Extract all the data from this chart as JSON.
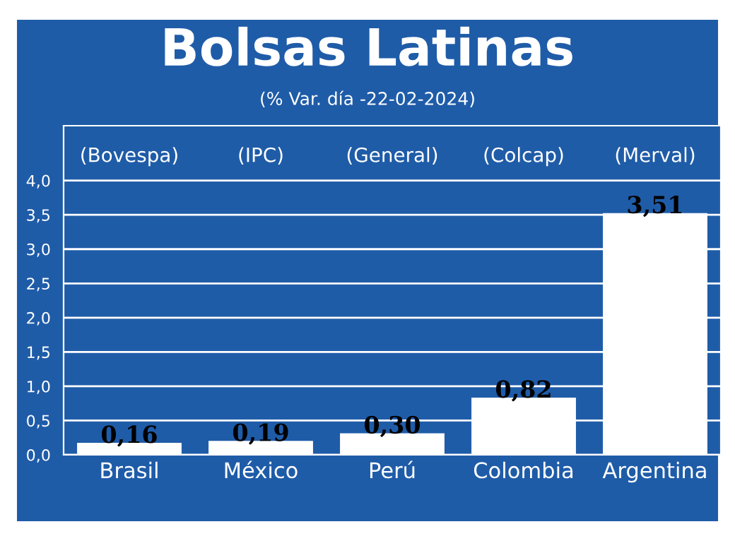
{
  "chart_data": {
    "type": "bar",
    "title": "Bolsas Latinas",
    "subtitle": "(% Var. día -22-02-2024)",
    "categories": [
      "Brasil",
      "México",
      "Perú",
      "Colombia",
      "Argentina"
    ],
    "values": [
      0.16,
      0.19,
      0.3,
      0.82,
      3.51
    ],
    "value_labels": [
      "0,16",
      "0,19",
      "0,30",
      "0,82",
      "3,51"
    ],
    "color": "#ffffff",
    "annotations": [
      "(Bovespa)",
      "(IPC)",
      "(General)",
      "(Colcap)",
      "(Merval)"
    ],
    "ylim": [
      0,
      4.8
    ],
    "yticks": [
      {
        "value": 0,
        "label": "0,0"
      },
      {
        "value": 0.5,
        "label": "0,5"
      },
      {
        "value": 1,
        "label": "1,0"
      },
      {
        "value": 1.5,
        "label": "1,5"
      },
      {
        "value": 2,
        "label": "2,0"
      },
      {
        "value": 2.5,
        "label": "2,5"
      },
      {
        "value": 3,
        "label": "3,0"
      },
      {
        "value": 3.5,
        "label": "3,5"
      },
      {
        "value": 4,
        "label": "4,0"
      }
    ],
    "grid": "y",
    "legend": false
  }
}
